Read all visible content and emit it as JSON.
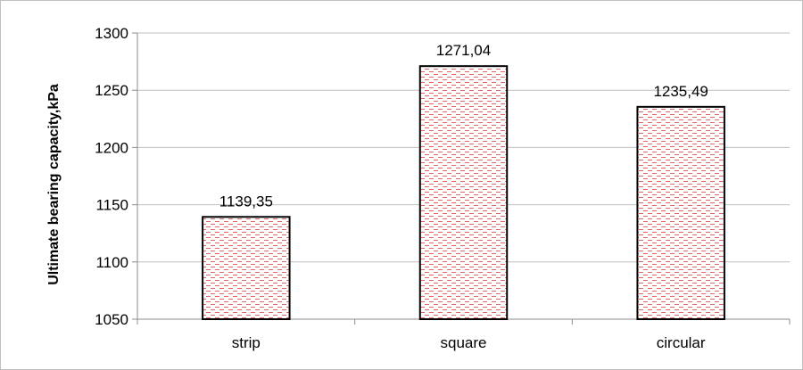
{
  "chart_data": {
    "type": "bar",
    "title": "",
    "xlabel": "",
    "ylabel": "Ultimate bearing capacity,kPa",
    "categories": [
      "strip",
      "square",
      "circular"
    ],
    "values": [
      1139.35,
      1271.04,
      1235.49
    ],
    "data_labels": [
      "1139,35",
      "1271,04",
      "1235,49"
    ],
    "ylim": [
      1050,
      1300
    ],
    "yticks": [
      1050,
      1100,
      1150,
      1200,
      1250,
      1300
    ],
    "grid": true,
    "legend": "none",
    "bar_fill": "#ffffff",
    "bar_pattern_color": "#e06666",
    "bar_border_color": "#000000",
    "gridline_color": "#bfbfbf"
  }
}
